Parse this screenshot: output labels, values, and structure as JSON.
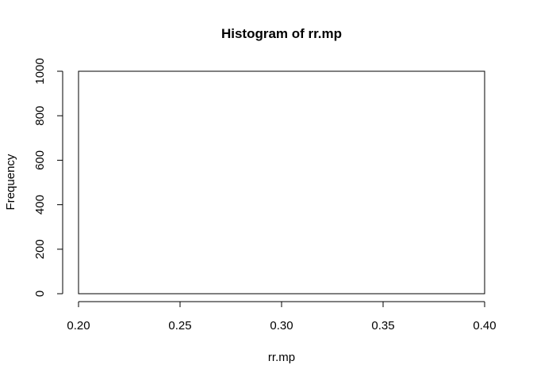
{
  "chart_data": {
    "type": "bar",
    "title": "Histogram of rr.mp",
    "xlabel": "rr.mp",
    "ylabel": "Frequency",
    "xlim": [
      0.2,
      0.4
    ],
    "ylim": [
      0,
      1000
    ],
    "x_ticks": [
      "0.20",
      "0.25",
      "0.30",
      "0.35",
      "0.40"
    ],
    "y_ticks": [
      "0",
      "200",
      "400",
      "600",
      "800",
      "1000"
    ],
    "bins": [
      {
        "x0": 0.2,
        "x1": 0.4,
        "count": 1000
      }
    ],
    "grid": false,
    "legend": "none"
  }
}
